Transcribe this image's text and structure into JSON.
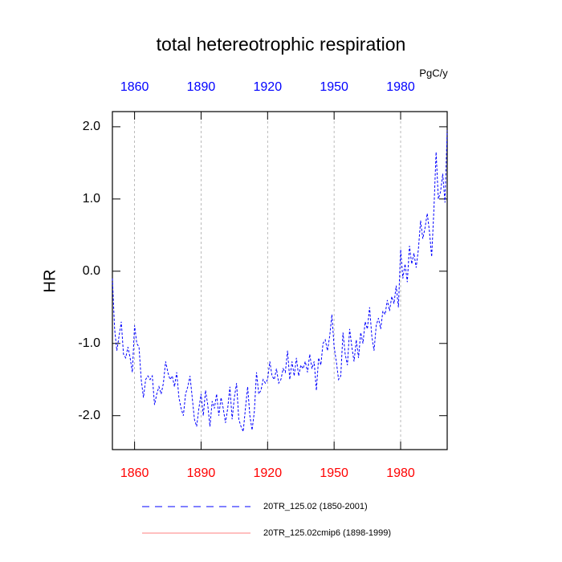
{
  "chart_data": {
    "type": "line",
    "title": "total hetereotrophic respiration",
    "units": "PgC/y",
    "ylabel": "HR",
    "top_axis_color": "#0000ff",
    "bottom_axis_color": "#ff0000",
    "grid": true,
    "xlim": [
      1850,
      2001
    ],
    "ylim": [
      -2.47,
      2.21
    ],
    "xticks": [
      1860,
      1890,
      1920,
      1950,
      1980
    ],
    "yticks": [
      {
        "value": 2,
        "label": "2.0"
      },
      {
        "value": 1,
        "label": "1.0"
      },
      {
        "value": 0,
        "label": "0.0"
      },
      {
        "value": -1,
        "label": "-1.0"
      },
      {
        "value": -2,
        "label": "-2.0"
      }
    ],
    "x": [
      1850,
      1851,
      1852,
      1853,
      1854,
      1855,
      1856,
      1857,
      1858,
      1859,
      1860,
      1861,
      1862,
      1863,
      1864,
      1865,
      1866,
      1867,
      1868,
      1869,
      1870,
      1871,
      1872,
      1873,
      1874,
      1875,
      1876,
      1877,
      1878,
      1879,
      1880,
      1881,
      1882,
      1883,
      1884,
      1885,
      1886,
      1887,
      1888,
      1889,
      1890,
      1891,
      1892,
      1893,
      1894,
      1895,
      1896,
      1897,
      1898,
      1899,
      1900,
      1901,
      1902,
      1903,
      1904,
      1905,
      1906,
      1907,
      1908,
      1909,
      1910,
      1911,
      1912,
      1913,
      1914,
      1915,
      1916,
      1917,
      1918,
      1919,
      1920,
      1921,
      1922,
      1923,
      1924,
      1925,
      1926,
      1927,
      1928,
      1929,
      1930,
      1931,
      1932,
      1933,
      1934,
      1935,
      1936,
      1937,
      1938,
      1939,
      1940,
      1941,
      1942,
      1943,
      1944,
      1945,
      1946,
      1947,
      1948,
      1949,
      1950,
      1951,
      1952,
      1953,
      1954,
      1955,
      1956,
      1957,
      1958,
      1959,
      1960,
      1961,
      1962,
      1963,
      1964,
      1965,
      1966,
      1967,
      1968,
      1969,
      1970,
      1971,
      1972,
      1973,
      1974,
      1975,
      1976,
      1977,
      1978,
      1979,
      1980,
      1981,
      1982,
      1983,
      1984,
      1985,
      1986,
      1987,
      1988,
      1989,
      1990,
      1991,
      1992,
      1993,
      1994,
      1995,
      1996,
      1997,
      1998,
      1999,
      2000,
      2001
    ],
    "series": [
      {
        "name": "20TR_125.02 (1850-2001)",
        "color": "#0000ff",
        "dash": true,
        "values": [
          -0.1,
          -0.8,
          -1.1,
          -0.9,
          -0.7,
          -1.15,
          -1.2,
          -1.05,
          -1.2,
          -1.4,
          -0.75,
          -1.0,
          -1.05,
          -1.5,
          -1.75,
          -1.5,
          -1.45,
          -1.5,
          -1.45,
          -1.85,
          -1.7,
          -1.6,
          -1.7,
          -1.55,
          -1.25,
          -1.4,
          -1.5,
          -1.45,
          -1.6,
          -1.4,
          -1.75,
          -1.9,
          -2.0,
          -1.7,
          -1.6,
          -1.45,
          -1.75,
          -2.05,
          -2.15,
          -1.9,
          -1.7,
          -2.0,
          -1.65,
          -1.85,
          -2.15,
          -1.8,
          -1.9,
          -1.7,
          -2.0,
          -1.75,
          -1.9,
          -2.1,
          -1.9,
          -1.6,
          -2.05,
          -1.75,
          -1.55,
          -2.05,
          -2.15,
          -2.22,
          -1.9,
          -1.6,
          -2.0,
          -2.2,
          -1.95,
          -1.4,
          -1.7,
          -1.65,
          -1.5,
          -1.55,
          -1.5,
          -1.25,
          -1.45,
          -1.5,
          -1.35,
          -1.55,
          -1.5,
          -1.35,
          -1.4,
          -1.1,
          -1.5,
          -1.25,
          -1.45,
          -1.2,
          -1.45,
          -1.3,
          -1.35,
          -1.25,
          -1.4,
          -1.15,
          -1.35,
          -1.25,
          -1.65,
          -1.2,
          -1.3,
          -1.0,
          -0.95,
          -1.1,
          -0.9,
          -0.6,
          -1.05,
          -1.25,
          -1.5,
          -1.45,
          -0.85,
          -1.15,
          -1.3,
          -0.8,
          -1.05,
          -1.25,
          -0.95,
          -1.2,
          -0.85,
          -1.0,
          -0.7,
          -0.8,
          -0.5,
          -0.9,
          -1.1,
          -0.75,
          -0.65,
          -0.8,
          -0.55,
          -0.6,
          -0.4,
          -0.55,
          -0.35,
          -0.45,
          -0.2,
          -0.5,
          0.3,
          -0.1,
          0.1,
          -0.15,
          0.35,
          0.1,
          0.25,
          0.05,
          0.3,
          0.7,
          0.45,
          0.6,
          0.8,
          0.55,
          0.2,
          0.85,
          1.65,
          1.0,
          1.1,
          1.35,
          0.95,
          1.95
        ]
      },
      {
        "name": "20TR_125.02cmip6 (1898-1999)",
        "color": "#ff0000",
        "dash": false,
        "values": [
          null,
          null,
          null,
          null,
          null,
          null,
          null,
          null,
          null,
          null,
          null,
          null,
          null,
          null,
          null,
          null,
          null,
          null,
          null,
          null,
          null,
          null,
          null,
          null,
          null,
          null,
          null,
          null,
          null,
          null,
          null,
          null,
          null,
          null,
          null,
          null,
          null,
          null,
          null,
          null,
          null,
          null,
          null,
          null,
          null,
          null,
          null,
          null,
          null,
          null,
          null,
          null,
          null,
          null,
          null,
          null,
          null,
          null,
          null,
          null,
          null,
          null,
          null,
          null,
          null,
          null,
          null,
          null,
          null,
          null,
          null,
          null,
          null,
          null,
          null,
          null,
          null,
          null,
          null,
          null,
          null,
          null,
          null,
          null,
          null,
          null,
          null,
          null,
          null,
          null,
          null,
          null,
          null,
          null,
          null,
          null,
          null,
          null,
          null,
          null,
          null,
          null,
          null,
          null,
          null,
          null,
          null,
          null,
          null,
          null,
          null,
          null,
          null,
          null,
          null,
          null,
          null,
          null,
          null,
          null,
          null,
          null,
          null,
          null,
          null,
          null,
          null,
          null,
          null,
          null,
          null,
          null,
          null,
          null,
          null,
          null,
          null,
          null,
          null,
          null,
          null,
          null,
          null,
          null,
          null,
          null,
          null,
          null,
          null,
          null,
          null,
          null
        ]
      }
    ]
  }
}
